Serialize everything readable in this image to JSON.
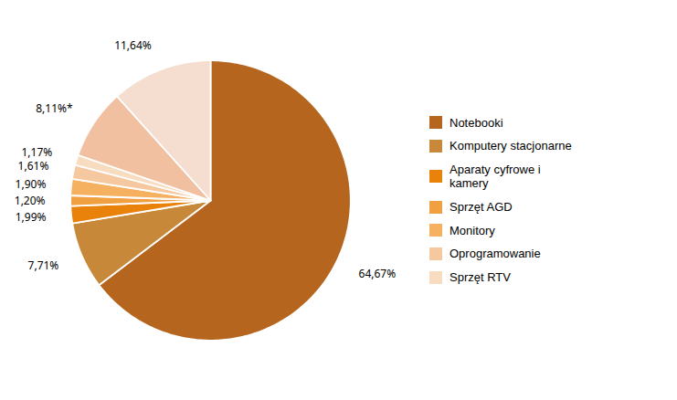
{
  "chart_data": {
    "type": "pie",
    "categories": [
      "Notebooki",
      "Komputery stacjonarne",
      "Aparaty cyfrowe i\nkamery",
      "Sprzęt AGD",
      "Monitory",
      "Oprogramowanie",
      "Sprzęt RTV",
      null,
      null
    ],
    "values": [
      64.67,
      7.71,
      1.99,
      1.2,
      1.9,
      1.61,
      1.17,
      8.11,
      11.64
    ],
    "value_labels": [
      "64,67%",
      "7,71%",
      "1,99%",
      "1,20%",
      "1,90%",
      "1,61%",
      "1,17%",
      "8,11%*",
      "11,64%"
    ],
    "colors": [
      "#b5651d",
      "#c8883a",
      "#e8820a",
      "#f0a040",
      "#f5b060",
      "#f5c8a0",
      "#f8dcc0",
      "#f0c0a0",
      "#f5ddd0"
    ],
    "data_labels": true,
    "legend": "right"
  }
}
